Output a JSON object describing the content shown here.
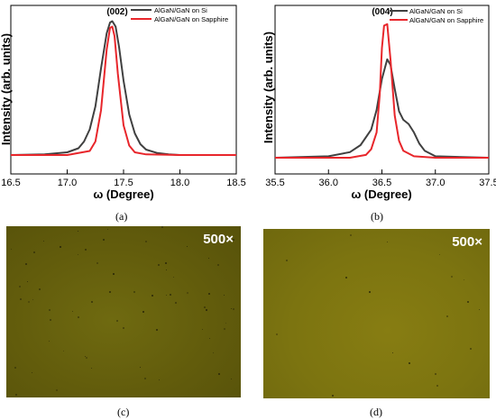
{
  "chart_data": [
    {
      "type": "line",
      "panel": "(a)",
      "peak_label": "(002)",
      "xlabel": "ω (Degree)",
      "ylabel": "Intensity (arb. units)",
      "xlim": [
        16.5,
        18.5
      ],
      "xticks": [
        "16.5",
        "17.0",
        "17.5",
        "18.0",
        "18.5"
      ],
      "series": [
        {
          "name": "AlGaN/GaN on Si",
          "color": "#404040",
          "x": [
            16.5,
            16.8,
            17.0,
            17.1,
            17.15,
            17.2,
            17.25,
            17.3,
            17.35,
            17.38,
            17.4,
            17.43,
            17.46,
            17.5,
            17.55,
            17.6,
            17.65,
            17.7,
            17.8,
            17.9,
            18.0,
            18.5
          ],
          "y": [
            0.0,
            0.005,
            0.02,
            0.05,
            0.1,
            0.19,
            0.36,
            0.64,
            0.9,
            0.98,
            0.99,
            0.95,
            0.8,
            0.55,
            0.3,
            0.16,
            0.08,
            0.04,
            0.015,
            0.005,
            0.0,
            0.0
          ]
        },
        {
          "name": "AlGaN/GaN on Sapphire",
          "color": "#e8262b",
          "x": [
            16.5,
            17.0,
            17.2,
            17.25,
            17.3,
            17.35,
            17.38,
            17.4,
            17.42,
            17.45,
            17.5,
            17.55,
            17.6,
            17.7,
            18.0,
            18.5
          ],
          "y": [
            0.0,
            0.0,
            0.03,
            0.1,
            0.33,
            0.78,
            0.94,
            0.95,
            0.88,
            0.6,
            0.22,
            0.07,
            0.02,
            0.005,
            0.0,
            0.0
          ]
        }
      ]
    },
    {
      "type": "line",
      "panel": "(b)",
      "peak_label": "(004)",
      "xlabel": "ω (Degree)",
      "ylabel": "Intensity (arb. units)",
      "xlim": [
        35.5,
        37.5
      ],
      "xticks": [
        "35.5",
        "36.0",
        "36.5",
        "37.0",
        "37.5"
      ],
      "series": [
        {
          "name": "AlGaN/GaN on Si",
          "color": "#404040",
          "x": [
            35.5,
            36.0,
            36.2,
            36.3,
            36.4,
            36.45,
            36.5,
            36.55,
            36.58,
            36.62,
            36.66,
            36.7,
            36.75,
            36.8,
            36.85,
            36.9,
            37.0,
            37.5
          ],
          "y": [
            0.0,
            0.01,
            0.04,
            0.09,
            0.2,
            0.34,
            0.56,
            0.7,
            0.66,
            0.49,
            0.33,
            0.27,
            0.24,
            0.18,
            0.1,
            0.05,
            0.01,
            0.0
          ]
        },
        {
          "name": "AlGaN/GaN on Sapphire",
          "color": "#e8262b",
          "x": [
            35.5,
            36.2,
            36.35,
            36.4,
            36.45,
            36.48,
            36.5,
            36.52,
            36.55,
            36.58,
            36.62,
            36.66,
            36.7,
            36.8,
            37.0,
            37.5
          ],
          "y": [
            0.0,
            0.0,
            0.02,
            0.06,
            0.18,
            0.45,
            0.78,
            0.94,
            0.95,
            0.7,
            0.3,
            0.12,
            0.05,
            0.01,
            0.0,
            0.0
          ]
        }
      ]
    }
  ],
  "images": [
    {
      "panel": "(c)",
      "magnification": "500×",
      "color": "#625c0c"
    },
    {
      "panel": "(d)",
      "magnification": "500×",
      "color": "#7c7410"
    }
  ]
}
